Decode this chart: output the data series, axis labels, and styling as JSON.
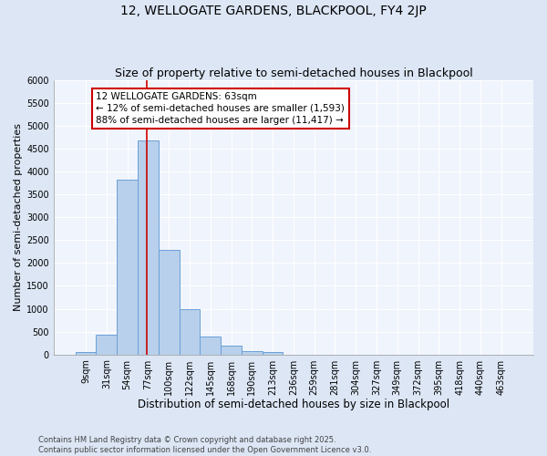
{
  "title": "12, WELLOGATE GARDENS, BLACKPOOL, FY4 2JP",
  "subtitle": "Size of property relative to semi-detached houses in Blackpool",
  "xlabel": "Distribution of semi-detached houses by size in Blackpool",
  "ylabel": "Number of semi-detached properties",
  "categories": [
    "9sqm",
    "31sqm",
    "54sqm",
    "77sqm",
    "100sqm",
    "122sqm",
    "145sqm",
    "168sqm",
    "190sqm",
    "213sqm",
    "236sqm",
    "259sqm",
    "281sqm",
    "304sqm",
    "327sqm",
    "349sqm",
    "372sqm",
    "395sqm",
    "418sqm",
    "440sqm",
    "463sqm"
  ],
  "bar_values": [
    50,
    440,
    3820,
    4680,
    2290,
    990,
    400,
    195,
    75,
    60,
    0,
    0,
    0,
    0,
    0,
    0,
    0,
    0,
    0,
    0,
    0
  ],
  "bar_color": "#b8d0eb",
  "bar_edge_color": "#6a9fd8",
  "ylim": [
    0,
    6000
  ],
  "yticks": [
    0,
    500,
    1000,
    1500,
    2000,
    2500,
    3000,
    3500,
    4000,
    4500,
    5000,
    5500,
    6000
  ],
  "property_label": "12 WELLOGATE GARDENS: 63sqm",
  "pct_smaller": 12,
  "count_smaller": 1593,
  "pct_larger": 88,
  "count_larger": 11417,
  "vline_x_index": 2.95,
  "annotation_box_color": "#ffffff",
  "annotation_box_edge_color": "#cc0000",
  "footer_text": "Contains HM Land Registry data © Crown copyright and database right 2025.\nContains public sector information licensed under the Open Government Licence v3.0.",
  "figure_bg_color": "#dce6f5",
  "plot_bg_color": "#f0f4fc",
  "grid_color": "#ffffff",
  "title_fontsize": 10,
  "subtitle_fontsize": 9,
  "xlabel_fontsize": 8.5,
  "ylabel_fontsize": 8,
  "tick_fontsize": 7,
  "annotation_fontsize": 7.5,
  "footer_fontsize": 6
}
